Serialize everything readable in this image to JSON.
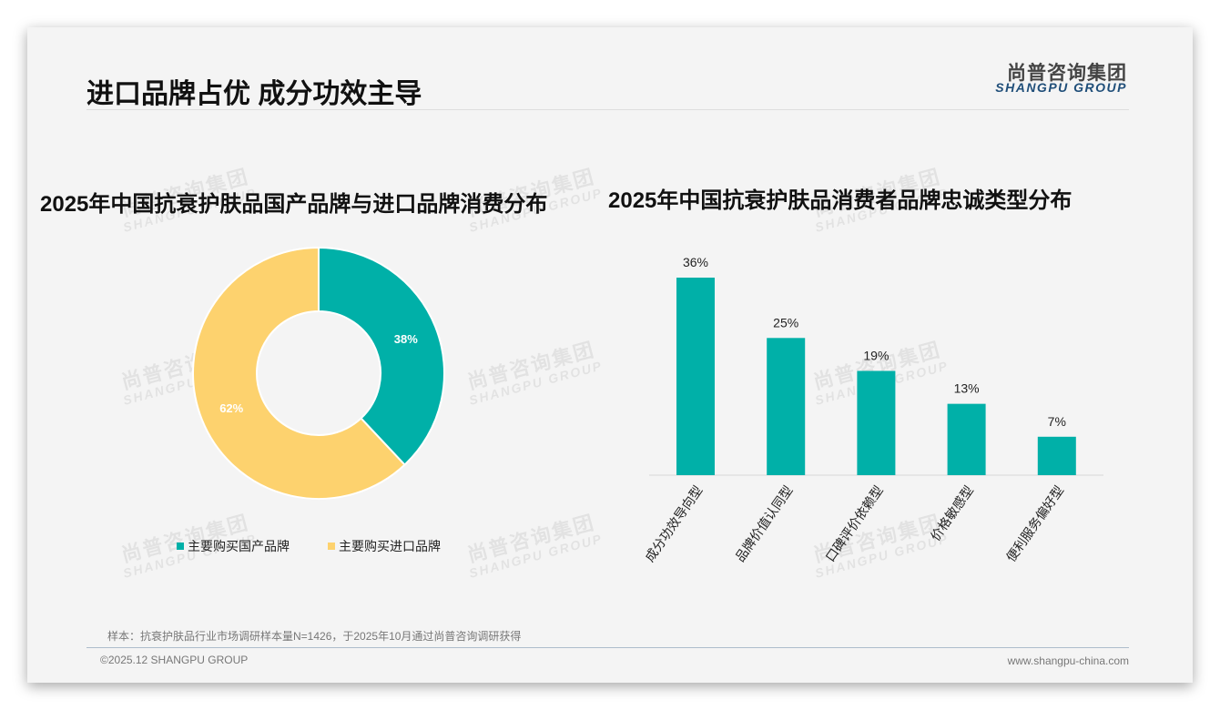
{
  "header": {
    "title": "进口品牌占优 成分功效主导",
    "logo_cn": "尚普咨询集团",
    "logo_en": "SHANGPU GROUP"
  },
  "watermark": {
    "cn": "尚普咨询集团",
    "en": "SHANGPU GROUP"
  },
  "footer": {
    "note": "样本：抗衰护肤品行业市场调研样本量N=1426，于2025年10月通过尚普咨询调研获得",
    "copyright": "©2025.12 SHANGPU GROUP",
    "url": "www.shangpu-china.com"
  },
  "colors": {
    "teal": "#00b0a8",
    "yellow": "#fdd26e"
  },
  "chart_data": [
    {
      "type": "pie",
      "title": "2025年中国抗衰护肤品国产品牌与进口品牌消费分布",
      "donut": true,
      "categories": [
        "主要购买国产品牌",
        "主要购买进口品牌"
      ],
      "values": [
        38,
        62
      ],
      "labels": [
        "38%",
        "62%"
      ],
      "legend": "bottom"
    },
    {
      "type": "bar",
      "title": "2025年中国抗衰护肤品消费者品牌忠诚类型分布",
      "categories": [
        "成分功效导向型",
        "品牌价值认同型",
        "口碑评价依赖型",
        "价格敏感型",
        "便利服务偏好型"
      ],
      "values": [
        36,
        25,
        19,
        13,
        7
      ],
      "labels": [
        "36%",
        "25%",
        "19%",
        "13%",
        "7%"
      ],
      "ylim": [
        0,
        36
      ]
    }
  ]
}
